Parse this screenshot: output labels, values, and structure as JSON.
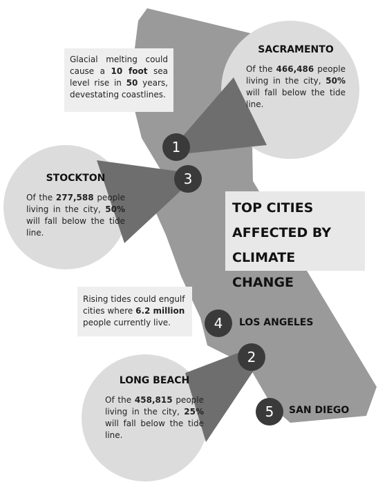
{
  "heading": "TOP CITIES AFFECTED BY CLIMATE CHANGE",
  "markers": [
    1,
    2,
    3,
    4,
    5
  ],
  "labels": [
    "LOS ANGELES",
    "SAN DIEGO"
  ],
  "notes": [
    [
      "Glacial melting could cause a",
      "10 foot",
      "sea level rise in",
      "50",
      "years, devestating coastlines."
    ],
    [
      "Rising tides could engulf cities where",
      "6.2 million",
      "people currently live."
    ]
  ],
  "callouts": [
    {
      "title": "SACRAMENTO",
      "body": [
        "Of the",
        "466,486",
        "people living in the city,",
        "50%",
        "will fall below the tide line."
      ]
    },
    {
      "title": "STOCKTON",
      "body": [
        "Of the",
        "277,588",
        "people living in the city,",
        "50%",
        "will fall below the tide line."
      ]
    },
    {
      "title": "LONG BEACH",
      "body": [
        "Of the",
        "458,815",
        "people living in the city,",
        "25%",
        "will fall below the tide line."
      ]
    }
  ]
}
